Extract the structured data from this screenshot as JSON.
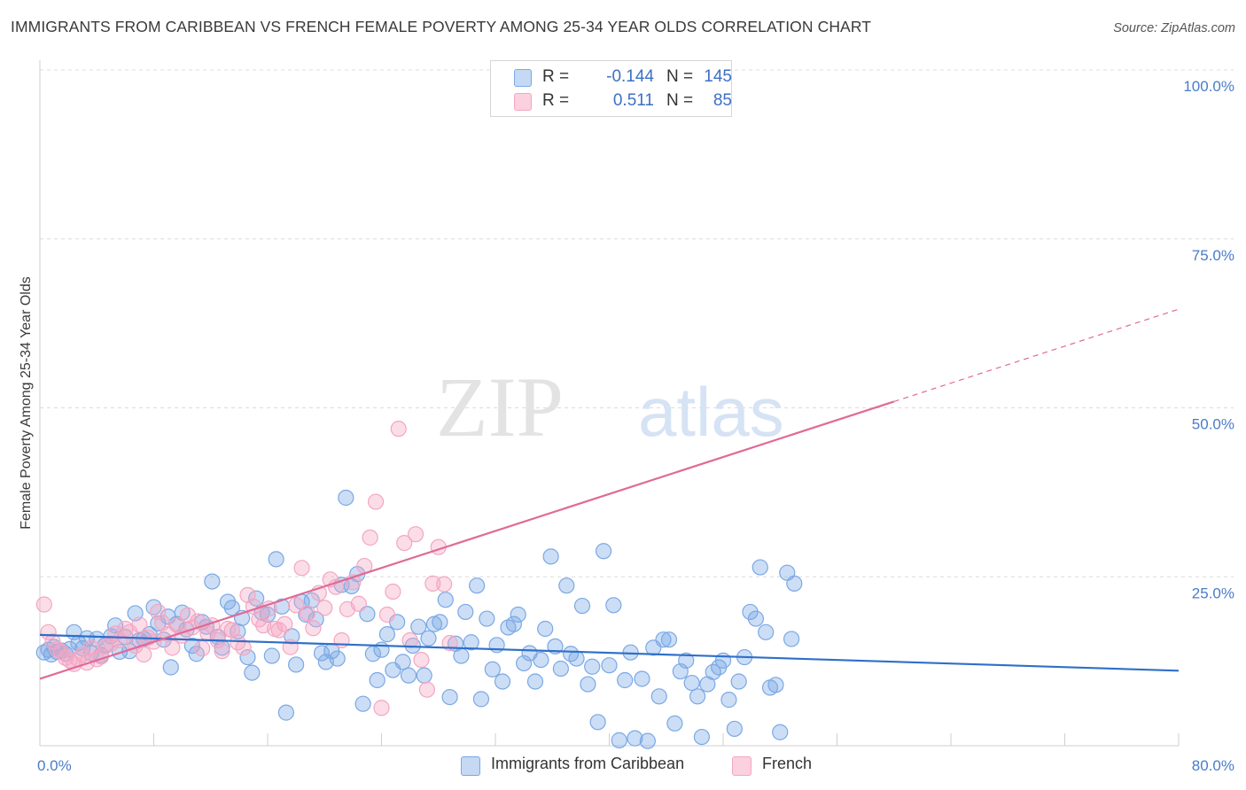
{
  "title": "IMMIGRANTS FROM CARIBBEAN VS FRENCH FEMALE POVERTY AMONG 25-34 YEAR OLDS CORRELATION CHART",
  "source": "Source: ZipAtlas.com",
  "watermark": {
    "zip": "ZIP",
    "atlas": "atlas"
  },
  "legend": {
    "r_label": "R =",
    "n_label": "N =",
    "rows": [
      {
        "r": "-0.144",
        "n": "145"
      },
      {
        "r": "0.511",
        "n": "85"
      }
    ]
  },
  "chart_data": {
    "type": "scatter",
    "ylabel": "Female Poverty Among 25-34 Year Olds",
    "xlim": [
      0,
      80
    ],
    "ylim": [
      0,
      100
    ],
    "x_tick_labels": [
      "0.0%",
      "80.0%"
    ],
    "y_ticks": [
      {
        "value": 100,
        "label": "100.0%"
      },
      {
        "value": 75,
        "label": "75.0%"
      },
      {
        "value": 50,
        "label": "50.0%"
      },
      {
        "value": 25,
        "label": "25.0%"
      }
    ],
    "grid": "horizontal dashed",
    "legend_position": "top-center",
    "series": [
      {
        "name": "Immigrants from Caribbean",
        "color": "#7aa8e6",
        "trend_color": "#2f6fc8",
        "trend": {
          "x1": 0,
          "y1": 16.4,
          "x2": 80,
          "y2": 11.1,
          "dashed_from": null
        },
        "points": [
          [
            0.3,
            13.8
          ],
          [
            0.6,
            14.2
          ],
          [
            0.8,
            13.5
          ],
          [
            1.0,
            14.6
          ],
          [
            1.2,
            13.9
          ],
          [
            1.5,
            14.1
          ],
          [
            1.8,
            13.6
          ],
          [
            2.1,
            14.3
          ],
          [
            2.4,
            16.8
          ],
          [
            2.7,
            15.2
          ],
          [
            3.0,
            14.4
          ],
          [
            3.3,
            15.9
          ],
          [
            3.6,
            13.7
          ],
          [
            4.0,
            15.8
          ],
          [
            4.3,
            13.4
          ],
          [
            4.6,
            14.9
          ],
          [
            5.0,
            16.2
          ],
          [
            5.3,
            17.8
          ],
          [
            5.6,
            13.9
          ],
          [
            6.0,
            16.1
          ],
          [
            6.3,
            14.0
          ],
          [
            6.7,
            19.6
          ],
          [
            7.0,
            15.6
          ],
          [
            7.3,
            15.8
          ],
          [
            7.7,
            16.5
          ],
          [
            8.0,
            20.5
          ],
          [
            8.3,
            18.1
          ],
          [
            8.7,
            15.7
          ],
          [
            9.0,
            19.1
          ],
          [
            9.2,
            11.6
          ],
          [
            9.6,
            18.0
          ],
          [
            10.0,
            19.7
          ],
          [
            10.3,
            17.2
          ],
          [
            10.7,
            14.8
          ],
          [
            11.0,
            13.6
          ],
          [
            11.4,
            18.3
          ],
          [
            11.7,
            17.6
          ],
          [
            12.1,
            24.3
          ],
          [
            12.5,
            16.1
          ],
          [
            12.8,
            14.5
          ],
          [
            13.2,
            21.3
          ],
          [
            13.5,
            20.4
          ],
          [
            13.9,
            16.9
          ],
          [
            14.2,
            18.9
          ],
          [
            14.6,
            13.1
          ],
          [
            14.9,
            10.8
          ],
          [
            15.2,
            21.8
          ],
          [
            15.6,
            19.7
          ],
          [
            16.0,
            19.4
          ],
          [
            16.3,
            13.3
          ],
          [
            16.6,
            27.6
          ],
          [
            17.0,
            20.6
          ],
          [
            17.3,
            4.9
          ],
          [
            17.7,
            16.2
          ],
          [
            18.0,
            12.0
          ],
          [
            18.4,
            21.3
          ],
          [
            18.7,
            19.4
          ],
          [
            19.1,
            21.5
          ],
          [
            19.4,
            18.7
          ],
          [
            19.8,
            13.7
          ],
          [
            20.1,
            12.4
          ],
          [
            20.5,
            14.0
          ],
          [
            20.9,
            12.9
          ],
          [
            21.2,
            23.8
          ],
          [
            21.5,
            36.7
          ],
          [
            21.9,
            23.6
          ],
          [
            22.3,
            25.4
          ],
          [
            22.7,
            6.2
          ],
          [
            23.0,
            19.5
          ],
          [
            23.4,
            13.6
          ],
          [
            23.7,
            9.7
          ],
          [
            24.0,
            14.2
          ],
          [
            24.4,
            16.5
          ],
          [
            24.8,
            11.2
          ],
          [
            25.1,
            18.3
          ],
          [
            25.5,
            12.4
          ],
          [
            25.9,
            10.4
          ],
          [
            26.2,
            14.8
          ],
          [
            26.6,
            17.6
          ],
          [
            27.0,
            10.4
          ],
          [
            27.3,
            15.9
          ],
          [
            27.7,
            18.0
          ],
          [
            28.1,
            18.3
          ],
          [
            28.5,
            21.6
          ],
          [
            28.8,
            7.2
          ],
          [
            29.2,
            15.1
          ],
          [
            29.6,
            13.3
          ],
          [
            29.9,
            19.8
          ],
          [
            30.3,
            15.3
          ],
          [
            30.7,
            23.7
          ],
          [
            31.0,
            6.9
          ],
          [
            31.4,
            18.8
          ],
          [
            31.8,
            11.3
          ],
          [
            32.1,
            14.9
          ],
          [
            32.5,
            9.5
          ],
          [
            32.9,
            17.5
          ],
          [
            33.3,
            18.0
          ],
          [
            33.6,
            19.4
          ],
          [
            34.0,
            12.2
          ],
          [
            34.4,
            13.7
          ],
          [
            34.8,
            9.5
          ],
          [
            35.2,
            12.7
          ],
          [
            35.5,
            17.3
          ],
          [
            35.9,
            28.0
          ],
          [
            36.2,
            14.7
          ],
          [
            36.6,
            11.4
          ],
          [
            37.0,
            23.7
          ],
          [
            37.3,
            13.6
          ],
          [
            37.7,
            12.9
          ],
          [
            38.1,
            20.7
          ],
          [
            38.5,
            9.1
          ],
          [
            38.8,
            11.7
          ],
          [
            39.2,
            3.5
          ],
          [
            39.6,
            28.8
          ],
          [
            40.0,
            11.9
          ],
          [
            40.3,
            20.8
          ],
          [
            40.7,
            0.8
          ],
          [
            41.1,
            9.7
          ],
          [
            41.5,
            13.8
          ],
          [
            41.8,
            1.1
          ],
          [
            42.3,
            9.9
          ],
          [
            42.7,
            0.7
          ],
          [
            43.1,
            14.5
          ],
          [
            43.5,
            7.3
          ],
          [
            43.8,
            15.7
          ],
          [
            44.2,
            15.7
          ],
          [
            44.6,
            3.3
          ],
          [
            45.0,
            11.0
          ],
          [
            45.4,
            12.6
          ],
          [
            45.8,
            9.3
          ],
          [
            46.2,
            7.3
          ],
          [
            46.5,
            1.3
          ],
          [
            46.9,
            9.1
          ],
          [
            47.3,
            10.9
          ],
          [
            47.7,
            11.6
          ],
          [
            48.0,
            12.6
          ],
          [
            48.4,
            6.8
          ],
          [
            48.8,
            2.5
          ],
          [
            49.1,
            9.5
          ],
          [
            49.5,
            13.1
          ],
          [
            49.9,
            19.8
          ],
          [
            50.3,
            18.8
          ],
          [
            50.6,
            26.4
          ],
          [
            51.0,
            16.8
          ],
          [
            51.3,
            8.6
          ],
          [
            51.7,
            9.0
          ],
          [
            52.0,
            2.0
          ],
          [
            52.5,
            25.6
          ],
          [
            52.8,
            15.8
          ],
          [
            53.0,
            24.0
          ]
        ]
      },
      {
        "name": "French",
        "color": "#f4a6c2",
        "trend_color": "#e06a96",
        "trend": {
          "x1": 0,
          "y1": 9.9,
          "x2": 80,
          "y2": 64.6,
          "dashed_from": 60
        },
        "points": [
          [
            0.3,
            20.9
          ],
          [
            0.6,
            16.8
          ],
          [
            0.9,
            15.4
          ],
          [
            1.2,
            14.3
          ],
          [
            1.5,
            13.9
          ],
          [
            1.8,
            13.0
          ],
          [
            2.1,
            12.6
          ],
          [
            2.4,
            12.1
          ],
          [
            2.7,
            12.8
          ],
          [
            3.0,
            13.5
          ],
          [
            3.3,
            12.3
          ],
          [
            3.6,
            14.5
          ],
          [
            4.0,
            12.8
          ],
          [
            4.3,
            13.2
          ],
          [
            4.6,
            14.7
          ],
          [
            5.0,
            15.1
          ],
          [
            5.3,
            16.6
          ],
          [
            5.6,
            15.6
          ],
          [
            6.0,
            17.3
          ],
          [
            6.3,
            16.8
          ],
          [
            6.7,
            14.8
          ],
          [
            7.0,
            17.9
          ],
          [
            7.3,
            13.5
          ],
          [
            7.6,
            16.0
          ],
          [
            8.0,
            15.4
          ],
          [
            8.3,
            19.8
          ],
          [
            8.6,
            18.2
          ],
          [
            9.0,
            16.5
          ],
          [
            9.3,
            14.5
          ],
          [
            9.7,
            17.8
          ],
          [
            10.0,
            16.3
          ],
          [
            10.4,
            19.3
          ],
          [
            10.7,
            17.5
          ],
          [
            11.1,
            18.4
          ],
          [
            11.4,
            14.4
          ],
          [
            11.8,
            16.6
          ],
          [
            12.1,
            17.8
          ],
          [
            12.5,
            15.6
          ],
          [
            12.8,
            14.0
          ],
          [
            13.2,
            17.3
          ],
          [
            13.5,
            17.1
          ],
          [
            13.9,
            15.3
          ],
          [
            14.3,
            14.5
          ],
          [
            14.6,
            22.3
          ],
          [
            15.0,
            20.6
          ],
          [
            15.4,
            18.7
          ],
          [
            15.7,
            17.8
          ],
          [
            16.1,
            20.3
          ],
          [
            16.5,
            17.3
          ],
          [
            16.8,
            17.1
          ],
          [
            17.2,
            18.0
          ],
          [
            17.6,
            14.6
          ],
          [
            18.0,
            20.8
          ],
          [
            18.4,
            26.3
          ],
          [
            18.8,
            19.6
          ],
          [
            19.2,
            17.4
          ],
          [
            19.6,
            22.6
          ],
          [
            20.0,
            20.4
          ],
          [
            20.4,
            24.6
          ],
          [
            20.8,
            23.5
          ],
          [
            21.2,
            15.6
          ],
          [
            21.6,
            20.2
          ],
          [
            22.0,
            24.2
          ],
          [
            22.4,
            21.0
          ],
          [
            22.8,
            26.6
          ],
          [
            23.2,
            30.8
          ],
          [
            23.6,
            36.1
          ],
          [
            24.0,
            5.6
          ],
          [
            24.4,
            19.4
          ],
          [
            24.8,
            22.8
          ],
          [
            25.2,
            46.9
          ],
          [
            25.6,
            30.0
          ],
          [
            26.0,
            15.6
          ],
          [
            26.4,
            31.3
          ],
          [
            26.8,
            12.7
          ],
          [
            27.2,
            8.3
          ],
          [
            27.6,
            24.0
          ],
          [
            28.0,
            29.4
          ],
          [
            28.4,
            23.9
          ],
          [
            28.8,
            15.2
          ]
        ]
      }
    ]
  },
  "bottom_legend": [
    "Immigrants from Caribbean",
    "French"
  ]
}
